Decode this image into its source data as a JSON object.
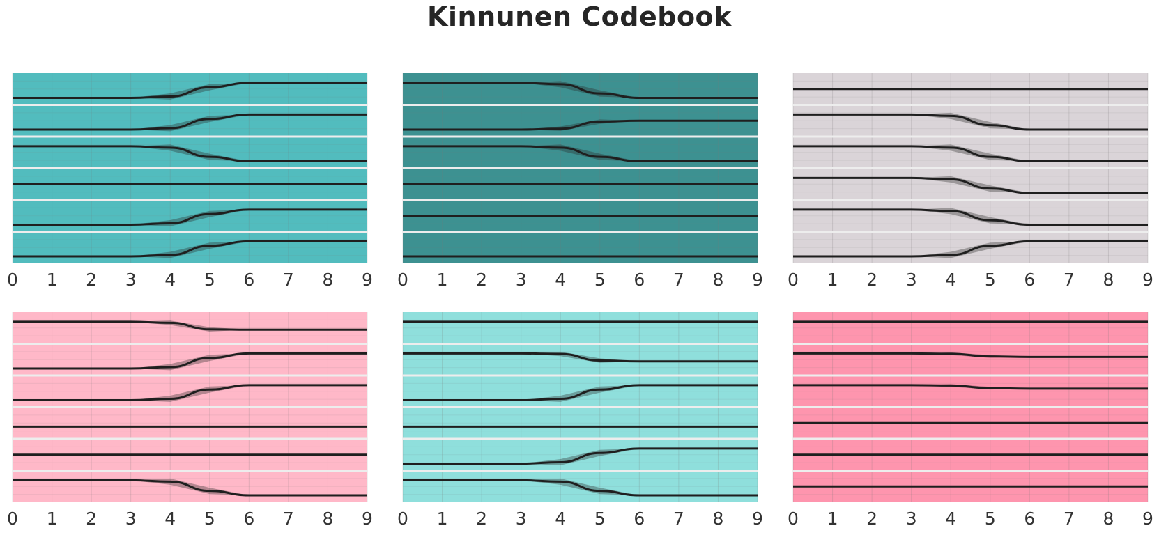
{
  "title": "Kinnunen Codebook",
  "chart_data": {
    "type": "line",
    "title": "Kinnunen Codebook",
    "x_ticks": [
      0,
      1,
      2,
      3,
      4,
      5,
      6,
      7,
      8,
      9
    ],
    "xlim": [
      0,
      9
    ],
    "grid": true,
    "panels": [
      {
        "background": "#52bcbe",
        "rows": [
          {
            "x": [
              0,
              3,
              4,
              5,
              6,
              9
            ],
            "y": [
              0,
              0,
              0.08,
              0.6,
              0.85,
              0.85
            ],
            "band": [
              0,
              0,
              0.35,
              0.35,
              0,
              0
            ]
          },
          {
            "x": [
              0,
              3,
              4,
              5,
              6,
              9
            ],
            "y": [
              0,
              0,
              0.08,
              0.6,
              0.85,
              0.85
            ],
            "band": [
              0,
              0,
              0.35,
              0.35,
              0,
              0
            ]
          },
          {
            "x": [
              0,
              3,
              4,
              5,
              6,
              9
            ],
            "y": [
              0.85,
              0.85,
              0.77,
              0.25,
              0,
              0
            ],
            "band": [
              0,
              0,
              0.35,
              0.35,
              0,
              0
            ]
          },
          {
            "x": [
              0,
              9
            ],
            "y": [
              0.5,
              0.5
            ],
            "band": [
              0,
              0
            ]
          },
          {
            "x": [
              0,
              3,
              4,
              5,
              6,
              9
            ],
            "y": [
              0,
              0,
              0.08,
              0.6,
              0.85,
              0.85
            ],
            "band": [
              0,
              0,
              0.35,
              0.35,
              0,
              0
            ]
          },
          {
            "x": [
              0,
              3,
              4,
              5,
              6,
              9
            ],
            "y": [
              0,
              0,
              0.08,
              0.6,
              0.85,
              0.85
            ],
            "band": [
              0,
              0,
              0.35,
              0.35,
              0,
              0
            ]
          }
        ]
      },
      {
        "background": "#3d9191",
        "rows": [
          {
            "x": [
              0,
              3,
              4,
              5,
              6,
              9
            ],
            "y": [
              0.85,
              0.85,
              0.77,
              0.25,
              0,
              0
            ],
            "band": [
              0,
              0,
              0.35,
              0.35,
              0,
              0
            ]
          },
          {
            "x": [
              0,
              3,
              4,
              5,
              6,
              9
            ],
            "y": [
              0,
              0,
              0.05,
              0.45,
              0.5,
              0.5
            ],
            "band": [
              0,
              0,
              0.25,
              0.25,
              0,
              0
            ]
          },
          {
            "x": [
              0,
              3,
              4,
              5,
              6,
              9
            ],
            "y": [
              0.85,
              0.85,
              0.77,
              0.25,
              0,
              0
            ],
            "band": [
              0,
              0,
              0.35,
              0.35,
              0,
              0
            ]
          },
          {
            "x": [
              0,
              9
            ],
            "y": [
              0.5,
              0.5
            ],
            "band": [
              0,
              0
            ]
          },
          {
            "x": [
              0,
              9
            ],
            "y": [
              0.5,
              0.5
            ],
            "band": [
              0,
              0
            ]
          },
          {
            "x": [
              0,
              9
            ],
            "y": [
              0,
              0
            ],
            "band": [
              0,
              0
            ]
          }
        ]
      },
      {
        "background": "#dad4d8",
        "rows": [
          {
            "x": [
              0,
              9
            ],
            "y": [
              0.5,
              0.5
            ],
            "band": [
              0,
              0
            ]
          },
          {
            "x": [
              0,
              3,
              4,
              5,
              6,
              9
            ],
            "y": [
              0.85,
              0.85,
              0.77,
              0.25,
              0,
              0
            ],
            "band": [
              0,
              0,
              0.35,
              0.35,
              0,
              0
            ]
          },
          {
            "x": [
              0,
              3,
              4,
              5,
              6,
              9
            ],
            "y": [
              0.85,
              0.85,
              0.77,
              0.25,
              0,
              0
            ],
            "band": [
              0,
              0,
              0.35,
              0.35,
              0,
              0
            ]
          },
          {
            "x": [
              0,
              3,
              4,
              5,
              6,
              9
            ],
            "y": [
              0.85,
              0.85,
              0.77,
              0.25,
              0,
              0
            ],
            "band": [
              0,
              0,
              0.35,
              0.35,
              0,
              0
            ]
          },
          {
            "x": [
              0,
              3,
              4,
              5,
              6,
              9
            ],
            "y": [
              0.85,
              0.85,
              0.77,
              0.25,
              0,
              0
            ],
            "band": [
              0,
              0,
              0.35,
              0.35,
              0,
              0
            ]
          },
          {
            "x": [
              0,
              3,
              4,
              5,
              6,
              9
            ],
            "y": [
              0,
              0,
              0.08,
              0.6,
              0.85,
              0.85
            ],
            "band": [
              0,
              0,
              0.35,
              0.35,
              0,
              0
            ]
          }
        ]
      },
      {
        "background": "#ffb8c8",
        "rows": [
          {
            "x": [
              0,
              3,
              4,
              5,
              6,
              9
            ],
            "y": [
              0.85,
              0.85,
              0.79,
              0.42,
              0.4,
              0.4
            ],
            "band": [
              0,
              0,
              0.25,
              0.25,
              0,
              0
            ]
          },
          {
            "x": [
              0,
              3,
              4,
              5,
              6,
              9
            ],
            "y": [
              0,
              0,
              0.08,
              0.6,
              0.85,
              0.85
            ],
            "band": [
              0,
              0,
              0.35,
              0.35,
              0,
              0
            ]
          },
          {
            "x": [
              0,
              3,
              4,
              5,
              6,
              9
            ],
            "y": [
              0,
              0,
              0.08,
              0.6,
              0.85,
              0.85
            ],
            "band": [
              0,
              0,
              0.35,
              0.35,
              0,
              0
            ]
          },
          {
            "x": [
              0,
              9
            ],
            "y": [
              0.3,
              0.3
            ],
            "band": [
              0,
              0
            ]
          },
          {
            "x": [
              0,
              9
            ],
            "y": [
              0.5,
              0.5
            ],
            "band": [
              0,
              0
            ]
          },
          {
            "x": [
              0,
              3,
              4,
              5,
              6,
              9
            ],
            "y": [
              0.85,
              0.85,
              0.77,
              0.25,
              0,
              0
            ],
            "band": [
              0,
              0,
              0.35,
              0.35,
              0,
              0
            ]
          }
        ]
      },
      {
        "background": "#8fdfdc",
        "rows": [
          {
            "x": [
              0,
              9
            ],
            "y": [
              0.85,
              0.85
            ],
            "band": [
              0,
              0
            ]
          },
          {
            "x": [
              0,
              3,
              4,
              5,
              6,
              9
            ],
            "y": [
              0.85,
              0.85,
              0.82,
              0.45,
              0.4,
              0.4
            ],
            "band": [
              0,
              0,
              0.25,
              0.25,
              0,
              0
            ]
          },
          {
            "x": [
              0,
              3,
              4,
              5,
              6,
              9
            ],
            "y": [
              0,
              0,
              0.08,
              0.6,
              0.85,
              0.85
            ],
            "band": [
              0,
              0,
              0.35,
              0.35,
              0,
              0
            ]
          },
          {
            "x": [
              0,
              9
            ],
            "y": [
              0.3,
              0.3
            ],
            "band": [
              0,
              0
            ]
          },
          {
            "x": [
              0,
              3,
              4,
              5,
              6,
              9
            ],
            "y": [
              0,
              0,
              0.08,
              0.6,
              0.85,
              0.85
            ],
            "band": [
              0,
              0,
              0.35,
              0.35,
              0,
              0
            ]
          },
          {
            "x": [
              0,
              3,
              4,
              5,
              6,
              9
            ],
            "y": [
              0.85,
              0.85,
              0.77,
              0.25,
              0,
              0
            ],
            "band": [
              0,
              0,
              0.35,
              0.35,
              0,
              0
            ]
          }
        ]
      },
      {
        "background": "#fe95ae",
        "rows": [
          {
            "x": [
              0,
              9
            ],
            "y": [
              0.85,
              0.85
            ],
            "band": [
              0,
              0
            ]
          },
          {
            "x": [
              0,
              3,
              4,
              5,
              6,
              9
            ],
            "y": [
              0.85,
              0.85,
              0.83,
              0.68,
              0.65,
              0.65
            ],
            "band": [
              0,
              0,
              0.15,
              0.15,
              0,
              0
            ]
          },
          {
            "x": [
              0,
              3,
              4,
              5,
              6,
              9
            ],
            "y": [
              0.85,
              0.85,
              0.83,
              0.68,
              0.65,
              0.65
            ],
            "band": [
              0,
              0,
              0.15,
              0.15,
              0,
              0
            ]
          },
          {
            "x": [
              0,
              9
            ],
            "y": [
              0.5,
              0.5
            ],
            "band": [
              0,
              0
            ]
          },
          {
            "x": [
              0,
              9
            ],
            "y": [
              0.5,
              0.5
            ],
            "band": [
              0,
              0
            ]
          },
          {
            "x": [
              0,
              9
            ],
            "y": [
              0.5,
              0.5
            ],
            "band": [
              0,
              0
            ]
          }
        ]
      }
    ]
  }
}
